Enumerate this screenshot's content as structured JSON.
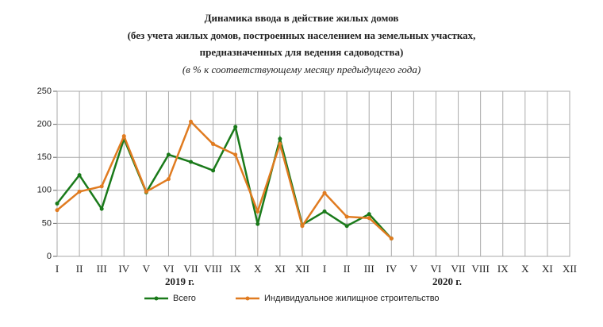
{
  "chart_data": {
    "type": "line",
    "title": "Динамика ввода в действие жилых домов",
    "title_lines": [
      "(без учета жилых домов, построенных населением на земельных участках,",
      "предназначенных для ведения садоводства)"
    ],
    "subtitle": "(в % к соответствующему месяцу предыдущего года)",
    "categories": [
      "I",
      "II",
      "III",
      "IV",
      "V",
      "VI",
      "VII",
      "VIII",
      "IX",
      "X",
      "XI",
      "XII",
      "I",
      "II",
      "III",
      "IV",
      "V",
      "VI",
      "VII",
      "VIII",
      "IX",
      "X",
      "XI",
      "XII"
    ],
    "x_groups": [
      "2019 г.",
      "2020 г."
    ],
    "series": [
      {
        "name": "Всего",
        "color": "#1a7a1a",
        "values": [
          80,
          123,
          72,
          178,
          97,
          154,
          143,
          130,
          196,
          49,
          178,
          48,
          68,
          46,
          64,
          27,
          null,
          null,
          null,
          null,
          null,
          null,
          null,
          null
        ]
      },
      {
        "name": "Индивидуальное жилищное строительство",
        "color": "#e07b20",
        "values": [
          70,
          98,
          106,
          182,
          98,
          117,
          204,
          170,
          154,
          68,
          170,
          46,
          96,
          60,
          58,
          27,
          null,
          null,
          null,
          null,
          null,
          null,
          null,
          null
        ]
      }
    ],
    "ylim": [
      0,
      250
    ],
    "yticks": [
      0,
      50,
      100,
      150,
      200,
      250
    ],
    "grid": true,
    "legend": "bottom"
  }
}
